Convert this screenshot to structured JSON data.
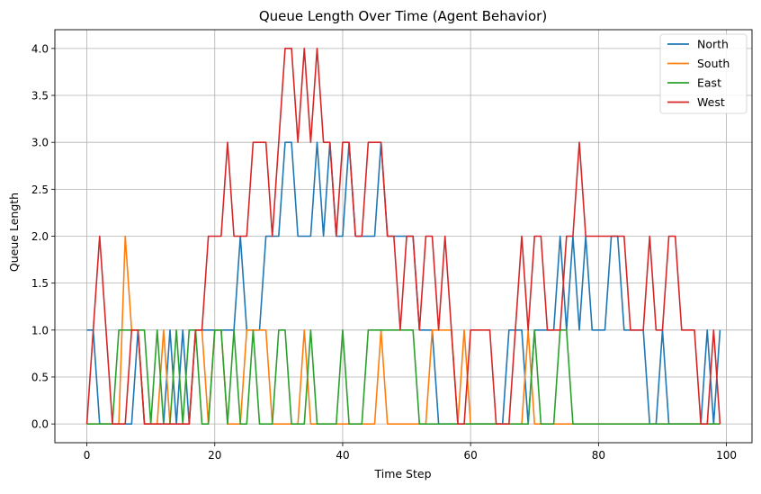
{
  "chart_data": {
    "type": "line",
    "title": "Queue Length Over Time (Agent Behavior)",
    "xlabel": "Time Step",
    "ylabel": "Queue Length",
    "xlim": [
      -5,
      104
    ],
    "ylim": [
      -0.2,
      4.2
    ],
    "xticks": [
      0,
      20,
      40,
      60,
      80,
      100
    ],
    "yticks": [
      0.0,
      0.5,
      1.0,
      1.5,
      2.0,
      2.5,
      3.0,
      3.5,
      4.0
    ],
    "xtick_labels": [
      "0",
      "20",
      "40",
      "60",
      "80",
      "100"
    ],
    "ytick_labels": [
      "0.0",
      "0.5",
      "1.0",
      "1.5",
      "2.0",
      "2.5",
      "3.0",
      "3.5",
      "4.0"
    ],
    "grid": true,
    "legend_position": "top-right",
    "series": [
      {
        "name": "North",
        "color": "#1f77b4",
        "values": [
          1,
          1,
          0,
          0,
          0,
          0,
          0,
          0,
          1,
          0,
          0,
          0,
          0,
          1,
          0,
          1,
          0,
          1,
          1,
          1,
          1,
          1,
          1,
          1,
          2,
          1,
          1,
          1,
          2,
          2,
          2,
          3,
          3,
          2,
          2,
          2,
          3,
          2,
          3,
          2,
          2,
          3,
          2,
          2,
          2,
          2,
          3,
          2,
          2,
          2,
          2,
          2,
          1,
          1,
          1,
          0,
          0,
          0,
          0,
          0,
          0,
          0,
          0,
          0,
          0,
          0,
          1,
          1,
          1,
          0,
          1,
          1,
          1,
          1,
          2,
          1,
          2,
          1,
          2,
          1,
          1,
          1,
          2,
          2,
          1,
          1,
          1,
          1,
          0,
          0,
          1,
          0,
          0,
          0,
          0,
          0,
          0,
          1,
          0,
          1
        ]
      },
      {
        "name": "South",
        "color": "#ff7f0e",
        "values": [
          0,
          0,
          0,
          0,
          0,
          0,
          2,
          1,
          1,
          0,
          0,
          0,
          1,
          0,
          0,
          0,
          0,
          1,
          1,
          0,
          1,
          1,
          0,
          0,
          0,
          1,
          1,
          1,
          1,
          0,
          0,
          0,
          0,
          0,
          1,
          0,
          0,
          0,
          0,
          0,
          0,
          0,
          0,
          0,
          0,
          0,
          1,
          0,
          0,
          0,
          0,
          0,
          0,
          0,
          1,
          1,
          1,
          1,
          0,
          1,
          0,
          0,
          0,
          0,
          0,
          0,
          0,
          0,
          0,
          1,
          0,
          0,
          0,
          0,
          0,
          0,
          0,
          0,
          0,
          0,
          0,
          0,
          0,
          0,
          0,
          0,
          0,
          0,
          0,
          0,
          0,
          0,
          0,
          0,
          0,
          0,
          0,
          0,
          0,
          0
        ]
      },
      {
        "name": "East",
        "color": "#2ca02c",
        "values": [
          0,
          0,
          0,
          0,
          0,
          1,
          1,
          1,
          1,
          1,
          0,
          1,
          0,
          0,
          1,
          0,
          1,
          1,
          0,
          0,
          1,
          1,
          0,
          1,
          0,
          0,
          1,
          0,
          0,
          0,
          1,
          1,
          0,
          0,
          0,
          1,
          0,
          0,
          0,
          0,
          1,
          0,
          0,
          0,
          1,
          1,
          1,
          1,
          1,
          1,
          1,
          1,
          0,
          0,
          0,
          0,
          0,
          0,
          0,
          0,
          0,
          0,
          0,
          0,
          0,
          0,
          0,
          0,
          0,
          0,
          1,
          0,
          0,
          0,
          1,
          1,
          0,
          0,
          0,
          0,
          0,
          0,
          0,
          0,
          0,
          0,
          0,
          0,
          0,
          0,
          0,
          0,
          0,
          0,
          0,
          0,
          0,
          0,
          0,
          0
        ]
      },
      {
        "name": "West",
        "color": "#d62728",
        "values": [
          0,
          1,
          2,
          1,
          0,
          0,
          0,
          1,
          1,
          0,
          0,
          0,
          0,
          0,
          0,
          0,
          0,
          1,
          1,
          2,
          2,
          2,
          3,
          2,
          2,
          2,
          3,
          3,
          3,
          2,
          3,
          4,
          4,
          3,
          4,
          3,
          4,
          3,
          3,
          2,
          3,
          3,
          2,
          2,
          3,
          3,
          3,
          2,
          2,
          1,
          2,
          2,
          1,
          2,
          2,
          1,
          2,
          1,
          0,
          0,
          1,
          1,
          1,
          1,
          0,
          0,
          0,
          1,
          2,
          1,
          2,
          2,
          1,
          1,
          1,
          2,
          2,
          3,
          2,
          2,
          2,
          2,
          2,
          2,
          2,
          1,
          1,
          1,
          2,
          1,
          1,
          2,
          2,
          1,
          1,
          1,
          0,
          0,
          1,
          0
        ]
      }
    ]
  }
}
